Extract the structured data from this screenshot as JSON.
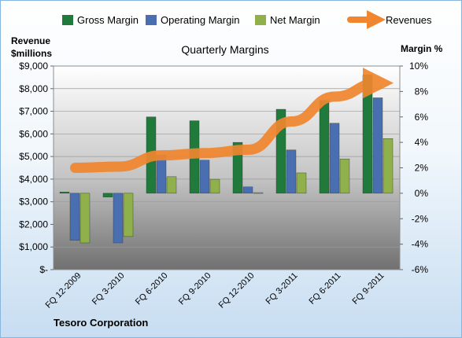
{
  "chart_data": {
    "type": "bar",
    "title": "Quarterly Margins",
    "left_axis_title": [
      "Revenue",
      "$millions"
    ],
    "right_axis_title": "Margin %",
    "left_ticks": [
      "$9,000",
      "$8,000",
      "$7,000",
      "$6,000",
      "$5,000",
      "$4,000",
      "$3,000",
      "$2,000",
      "$1,000",
      "$-"
    ],
    "right_ticks": [
      "10%",
      "8%",
      "6%",
      "4%",
      "2%",
      "0%",
      "-2%",
      "-4%",
      "-6%"
    ],
    "left_ylim": [
      0,
      9000
    ],
    "right_ylim": [
      -6,
      10
    ],
    "categories": [
      "FQ 12-2009",
      "FQ 3-2010",
      "FQ 6-2010",
      "FQ 9-2010",
      "FQ 12-2010",
      "FQ 3-2011",
      "FQ 6-2011",
      "FQ 9-2011"
    ],
    "series": [
      {
        "name": "Gross Margin",
        "axis": "right",
        "color": "#1f7a3c",
        "values": [
          0.1,
          -0.3,
          6.0,
          5.7,
          4.0,
          6.6,
          7.3,
          9.3
        ]
      },
      {
        "name": "Operating Margin",
        "axis": "right",
        "color": "#4a6fb0",
        "values": [
          -3.7,
          -3.9,
          3.0,
          2.6,
          0.5,
          3.4,
          5.5,
          7.5
        ]
      },
      {
        "name": "Net Margin",
        "axis": "right",
        "color": "#8fb04a",
        "values": [
          -3.9,
          -3.4,
          1.3,
          1.1,
          0.05,
          1.6,
          2.7,
          4.3
        ]
      },
      {
        "name": "Revenues",
        "axis": "left",
        "type": "line",
        "color": "#f0862f",
        "values": [
          4500,
          4550,
          5050,
          5150,
          5300,
          6550,
          7650,
          8250
        ]
      }
    ],
    "legend_position": "top",
    "grid": true
  },
  "company": "Tesoro Corporation"
}
